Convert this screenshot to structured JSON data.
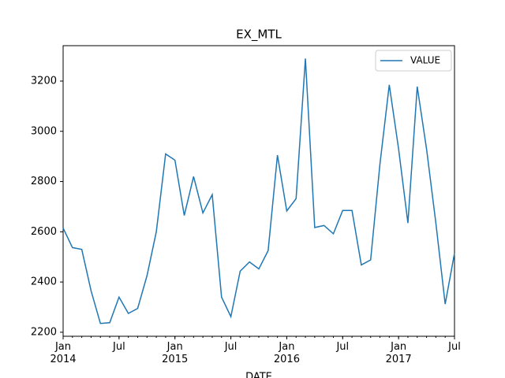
{
  "chart_data": {
    "type": "line",
    "title": "EX_MTL",
    "xlabel": "DATE",
    "x": [
      "2014-01",
      "2014-02",
      "2014-03",
      "2014-04",
      "2014-05",
      "2014-06",
      "2014-07",
      "2014-08",
      "2014-09",
      "2014-10",
      "2014-11",
      "2014-12",
      "2015-01",
      "2015-02",
      "2015-03",
      "2015-04",
      "2015-05",
      "2015-06",
      "2015-07",
      "2015-08",
      "2015-09",
      "2015-10",
      "2015-11",
      "2015-12",
      "2016-01",
      "2016-02",
      "2016-03",
      "2016-04",
      "2016-05",
      "2016-06",
      "2016-07",
      "2016-08",
      "2016-09",
      "2016-10",
      "2016-11",
      "2016-12",
      "2017-01",
      "2017-02",
      "2017-03",
      "2017-04",
      "2017-05",
      "2017-06",
      "2017-07"
    ],
    "series": [
      {
        "name": "VALUE",
        "color": "#1f77b4",
        "values": [
          2615,
          2537,
          2530,
          2365,
          2235,
          2238,
          2340,
          2275,
          2295,
          2425,
          2600,
          2910,
          2885,
          2665,
          2820,
          2675,
          2748,
          2340,
          2262,
          2443,
          2480,
          2452,
          2525,
          2905,
          2683,
          2732,
          3290,
          2617,
          2625,
          2592,
          2685,
          2685,
          2468,
          2488,
          2870,
          3185,
          2930,
          2635,
          3178,
          2930,
          2635,
          2312,
          2515
        ]
      }
    ],
    "xlim": [
      "2014-01",
      "2017-07"
    ],
    "xticks": [
      {
        "value": "2014-01",
        "label": "Jan\n2014"
      },
      {
        "value": "2014-07",
        "label": "Jul"
      },
      {
        "value": "2015-01",
        "label": "Jan\n2015"
      },
      {
        "value": "2015-07",
        "label": "Jul"
      },
      {
        "value": "2016-01",
        "label": "Jan\n2016"
      },
      {
        "value": "2016-07",
        "label": "Jul"
      },
      {
        "value": "2017-01",
        "label": "Jan\n2017"
      },
      {
        "value": "2017-07",
        "label": "Jul"
      }
    ],
    "ylim": [
      2184,
      3341
    ],
    "yticks": [
      2200,
      2400,
      2600,
      2800,
      3000,
      3200
    ],
    "legend": "upper right",
    "grid": false
  }
}
